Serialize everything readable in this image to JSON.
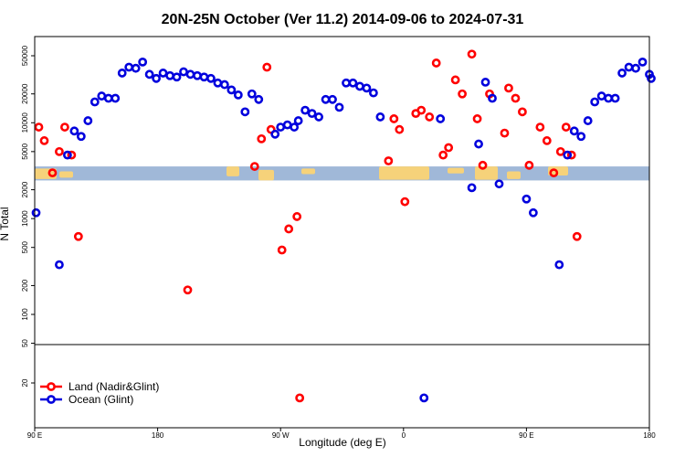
{
  "chart_data": {
    "type": "scatter",
    "title": "20N-25N October (Ver 11.2)   2014-09-06 to 2024-07-31",
    "xlabel": "Longitude (deg E)",
    "ylabel": "N Total",
    "x_ticks": [
      {
        "value": 90,
        "label": "90 E"
      },
      {
        "value": 180,
        "label": "180"
      },
      {
        "value": 270,
        "label": "90 W"
      },
      {
        "value": 360,
        "label": "0"
      },
      {
        "value": 450,
        "label": "90 E"
      },
      {
        "value": 540,
        "label": "180"
      }
    ],
    "xlim": [
      90,
      540
    ],
    "y_scale": "log",
    "ylim_upper_panel": [
      50,
      60000
    ],
    "ylim_lower_panel": [
      10,
      50
    ],
    "y_ticks_upper": [
      "50",
      "100",
      "200",
      "500",
      "1000",
      "2000",
      "5000",
      "10000",
      "20000",
      "50000"
    ],
    "y_ticks_lower": [
      "20"
    ],
    "panel_split_value": 50,
    "map_band": {
      "y_low": 2500,
      "y_high": 3500,
      "ocean_color": "#a0b8d8",
      "land_color": "#f6d27a"
    },
    "legend": {
      "position": "bottom-left"
    },
    "series": [
      {
        "name": "Land (Nadir&Glint)",
        "color": "#ff0000",
        "points": [
          [
            93,
            9000
          ],
          [
            97,
            6500
          ],
          [
            103,
            3000
          ],
          [
            108,
            5000
          ],
          [
            112,
            9000
          ],
          [
            117,
            4600
          ],
          [
            122,
            650
          ],
          [
            202,
            180
          ],
          [
            251,
            3500
          ],
          [
            256,
            6800
          ],
          [
            260,
            38000
          ],
          [
            263,
            8500
          ],
          [
            271,
            470
          ],
          [
            276,
            780
          ],
          [
            282,
            1050
          ],
          [
            284,
            14
          ],
          [
            349,
            4000
          ],
          [
            353,
            11000
          ],
          [
            357,
            8500
          ],
          [
            361,
            1500
          ],
          [
            369,
            12500
          ],
          [
            373,
            13500
          ],
          [
            379,
            11500
          ],
          [
            384,
            42000
          ],
          [
            389,
            4600
          ],
          [
            393,
            5500
          ],
          [
            398,
            28000
          ],
          [
            403,
            20000
          ],
          [
            410,
            52000
          ],
          [
            414,
            11000
          ],
          [
            418,
            3600
          ],
          [
            423,
            20000
          ],
          [
            434,
            7800
          ],
          [
            437,
            23000
          ],
          [
            442,
            18000
          ],
          [
            447,
            13000
          ],
          [
            452,
            3600
          ],
          [
            460,
            9000
          ],
          [
            465,
            6500
          ],
          [
            470,
            3000
          ],
          [
            475,
            5000
          ],
          [
            479,
            9000
          ],
          [
            483,
            4600
          ],
          [
            487,
            650
          ]
        ]
      },
      {
        "name": "Ocean (Glint)",
        "color": "#0000dd",
        "points": [
          [
            91,
            1150
          ],
          [
            108,
            330
          ],
          [
            114,
            4600
          ],
          [
            119,
            8200
          ],
          [
            124,
            7200
          ],
          [
            129,
            10500
          ],
          [
            134,
            16500
          ],
          [
            139,
            19000
          ],
          [
            144,
            18000
          ],
          [
            149,
            18000
          ],
          [
            154,
            33000
          ],
          [
            159,
            38000
          ],
          [
            164,
            37000
          ],
          [
            169,
            43000
          ],
          [
            174,
            32000
          ],
          [
            179,
            29000
          ],
          [
            184,
            33000
          ],
          [
            189,
            31000
          ],
          [
            194,
            30000
          ],
          [
            199,
            34000
          ],
          [
            204,
            32000
          ],
          [
            209,
            31000
          ],
          [
            214,
            30000
          ],
          [
            219,
            29000
          ],
          [
            224,
            26000
          ],
          [
            229,
            25000
          ],
          [
            234,
            22000
          ],
          [
            239,
            19500
          ],
          [
            244,
            13000
          ],
          [
            249,
            20000
          ],
          [
            254,
            17500
          ],
          [
            266,
            7600
          ],
          [
            270,
            9000
          ],
          [
            275,
            9500
          ],
          [
            280,
            9000
          ],
          [
            283,
            10500
          ],
          [
            288,
            13500
          ],
          [
            293,
            12500
          ],
          [
            298,
            11500
          ],
          [
            303,
            17500
          ],
          [
            308,
            17500
          ],
          [
            313,
            14500
          ],
          [
            318,
            26000
          ],
          [
            323,
            26000
          ],
          [
            328,
            24000
          ],
          [
            333,
            23000
          ],
          [
            338,
            20500
          ],
          [
            343,
            11500
          ],
          [
            375,
            14
          ],
          [
            387,
            11000
          ],
          [
            410,
            2100
          ],
          [
            415,
            6000
          ],
          [
            420,
            26500
          ],
          [
            425,
            18000
          ],
          [
            430,
            2300
          ],
          [
            450,
            1600
          ],
          [
            455,
            1150
          ],
          [
            474,
            330
          ],
          [
            480,
            4600
          ],
          [
            485,
            8200
          ],
          [
            490,
            7200
          ],
          [
            495,
            10500
          ],
          [
            500,
            16500
          ],
          [
            505,
            19000
          ],
          [
            510,
            18000
          ],
          [
            515,
            18000
          ],
          [
            520,
            33000
          ],
          [
            525,
            38000
          ],
          [
            530,
            37000
          ],
          [
            535,
            43000
          ],
          [
            540,
            32000
          ],
          [
            545,
            29000
          ]
        ]
      }
    ]
  }
}
